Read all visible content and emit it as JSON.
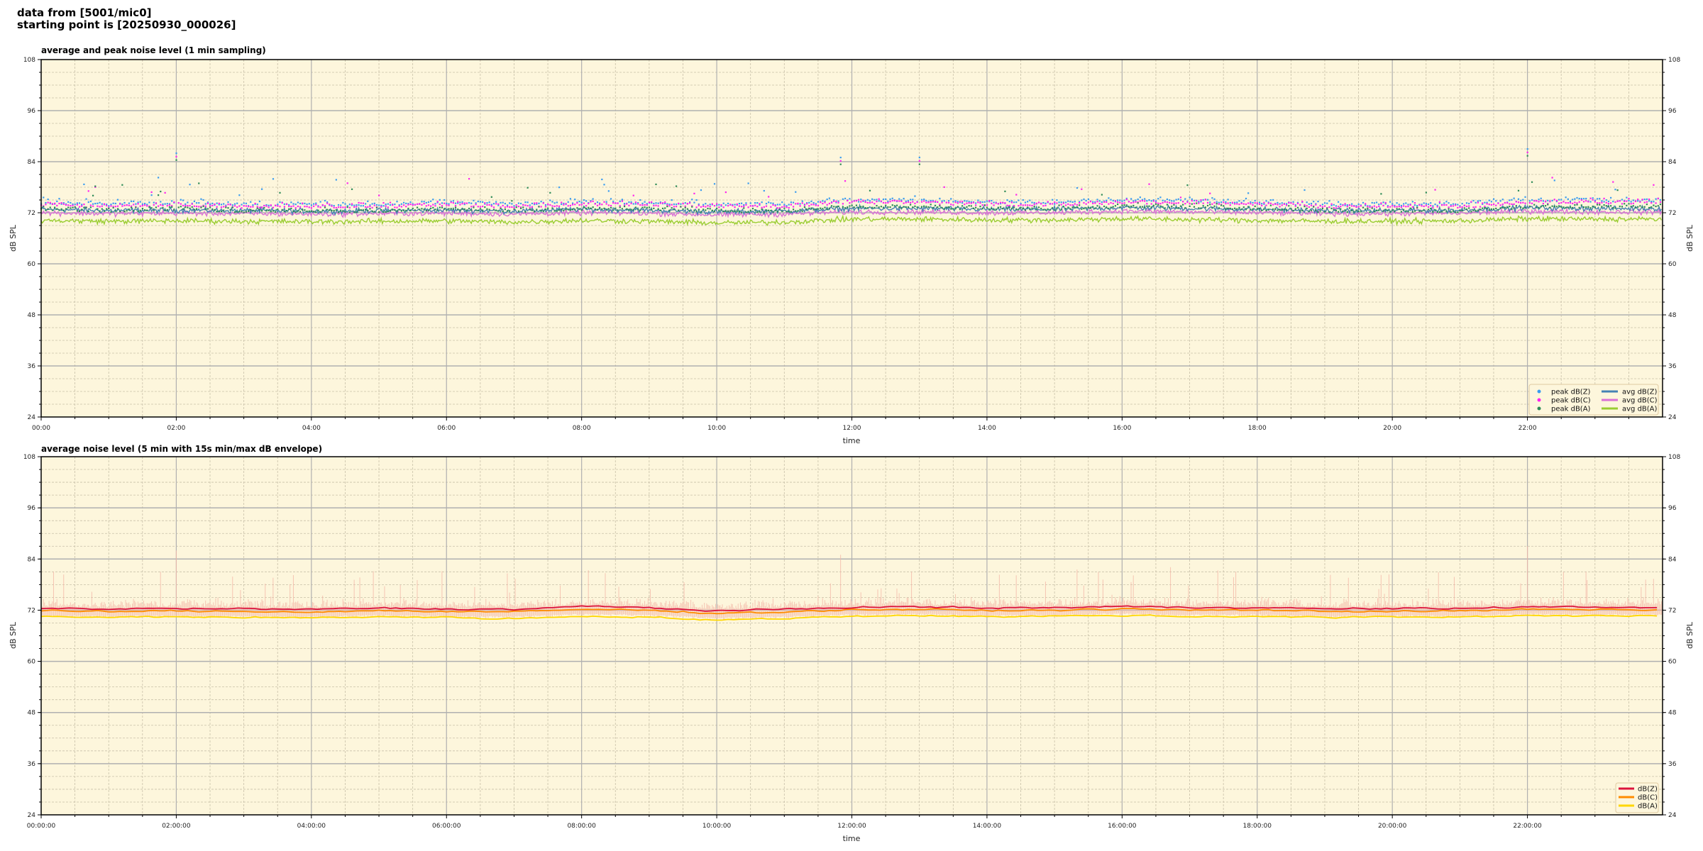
{
  "header": {
    "line1": "data from [5001/mic0]",
    "line2": "starting point is [20250930_000026]"
  },
  "colors": {
    "plot_bg": "#fdf6dc",
    "peak_z": "#3a9cf0",
    "peak_c": "#ff22ee",
    "peak_a": "#2e8b57",
    "avg_z": "#4682b4",
    "avg_c": "#da70d6",
    "avg_a": "#9acd32",
    "db_z": "#dc143c",
    "db_c": "#ff8c00",
    "db_a": "#ffd700",
    "envelope": "#f4b8a8"
  },
  "chart_data": [
    {
      "type": "scatter+line",
      "title": "average and peak noise level (1 min sampling)",
      "xlabel": "time",
      "ylabel": "dB SPL",
      "ylabel_right": "dB SPL",
      "xlim": [
        "00:00",
        "24:00"
      ],
      "ylim": [
        24,
        108
      ],
      "yticks": [
        "24",
        "36",
        "48",
        "60",
        "72",
        "84",
        "96",
        "108"
      ],
      "xticks": [
        "00:00",
        "02:00",
        "04:00",
        "06:00",
        "08:00",
        "10:00",
        "12:00",
        "14:00",
        "16:00",
        "18:00",
        "20:00",
        "22:00"
      ],
      "grid": true,
      "legend_position": "bottom-right",
      "legend": [
        "peak dB(Z)",
        "peak dB(C)",
        "peak dB(A)",
        "avg dB(Z)",
        "avg dB(C)",
        "avg dB(A)"
      ],
      "hourly_levels": {
        "peak dB(Z)": [
          74.5,
          74,
          74.5,
          74,
          74,
          74,
          74.5,
          74,
          74.5,
          74.5,
          74,
          74,
          75,
          75,
          74.5,
          74.5,
          75,
          75,
          74.5,
          74,
          74,
          74,
          75,
          75
        ],
        "peak dB(C)": [
          74,
          73.5,
          74,
          73.5,
          73.5,
          73.5,
          74,
          73.5,
          74,
          74,
          73.5,
          73.5,
          74.5,
          74.5,
          74,
          74,
          74.5,
          74.5,
          74,
          73.5,
          73.5,
          73.5,
          74.5,
          74.5
        ],
        "peak dB(A)": [
          73,
          72.5,
          73,
          72.5,
          72.5,
          72.5,
          73,
          72.5,
          73,
          73,
          72.5,
          72.5,
          73.5,
          73.5,
          73,
          73,
          73.5,
          73.5,
          73,
          72.5,
          72.5,
          72.5,
          73.5,
          73.5
        ],
        "avg dB(Z)": [
          72.8,
          72.5,
          72.6,
          72.5,
          72.4,
          72.5,
          72.6,
          72.4,
          72.8,
          72.6,
          72.2,
          72.4,
          73,
          73,
          72.8,
          72.8,
          73.2,
          73,
          72.8,
          72.5,
          72.5,
          72.6,
          73.2,
          73
        ],
        "avg dB(C)": [
          72,
          71.8,
          71.9,
          71.8,
          71.7,
          71.8,
          71.9,
          71.7,
          72,
          71.9,
          71.5,
          71.7,
          72.2,
          72.2,
          72,
          72,
          72.4,
          72.2,
          72,
          71.8,
          71.8,
          71.9,
          72.4,
          72.2
        ],
        "avg dB(A)": [
          70.2,
          70,
          70.1,
          70,
          69.9,
          70,
          70.1,
          69.8,
          70.2,
          70,
          69.6,
          69.8,
          70.5,
          70.5,
          70.3,
          70.3,
          70.6,
          70.4,
          70.2,
          70,
          70,
          70.1,
          70.6,
          70.5
        ]
      },
      "notable_peaks": [
        {
          "time": "02:00",
          "value": 86
        },
        {
          "time": "11:50",
          "value": 85
        },
        {
          "time": "13:00",
          "value": 85
        },
        {
          "time": "22:00",
          "value": 87
        }
      ]
    },
    {
      "type": "line",
      "title": "average noise level (5 min with 15s min/max dB envelope)",
      "xlabel": "time",
      "ylabel": "dB SPL",
      "ylabel_right": "dB SPL",
      "xlim": [
        "00:00:00",
        "24:00:00"
      ],
      "ylim": [
        24,
        108
      ],
      "yticks": [
        "24",
        "36",
        "48",
        "60",
        "72",
        "84",
        "96",
        "108"
      ],
      "xticks": [
        "00:00:00",
        "02:00:00",
        "04:00:00",
        "06:00:00",
        "08:00:00",
        "10:00:00",
        "12:00:00",
        "14:00:00",
        "16:00:00",
        "18:00:00",
        "20:00:00",
        "22:00:00"
      ],
      "grid": true,
      "legend_position": "bottom-right",
      "legend": [
        "dB(Z)",
        "dB(C)",
        "dB(A)"
      ],
      "hourly_levels": {
        "dB(Z)": [
          72.4,
          72.3,
          72.4,
          72.3,
          72.2,
          72.5,
          72.3,
          72.2,
          72.9,
          72.6,
          71.8,
          72.2,
          72.7,
          72.8,
          72.5,
          72.6,
          72.9,
          72.6,
          72.7,
          72.3,
          72.4,
          72.4,
          72.8,
          72.7
        ],
        "dB(C)": [
          71.8,
          71.7,
          71.8,
          71.7,
          71.6,
          71.9,
          71.7,
          71.6,
          72.2,
          72,
          71.3,
          71.6,
          72.1,
          72.2,
          71.9,
          72,
          72.3,
          72,
          72.1,
          71.7,
          71.8,
          71.8,
          72.2,
          72.1
        ],
        "dB(A)": [
          70.5,
          70.3,
          70.5,
          70.3,
          70.2,
          70.5,
          70.3,
          70,
          70.6,
          70.4,
          69.6,
          70.1,
          70.6,
          70.8,
          70.5,
          70.6,
          70.8,
          70.5,
          70.6,
          70.3,
          70.4,
          70.4,
          70.8,
          70.7
        ]
      },
      "envelope_max_typical": 75,
      "envelope_spikes": [
        {
          "time": "02:00:00",
          "value": 86
        },
        {
          "time": "11:50:00",
          "value": 85
        },
        {
          "time": "22:00:00",
          "value": 87
        }
      ]
    }
  ]
}
